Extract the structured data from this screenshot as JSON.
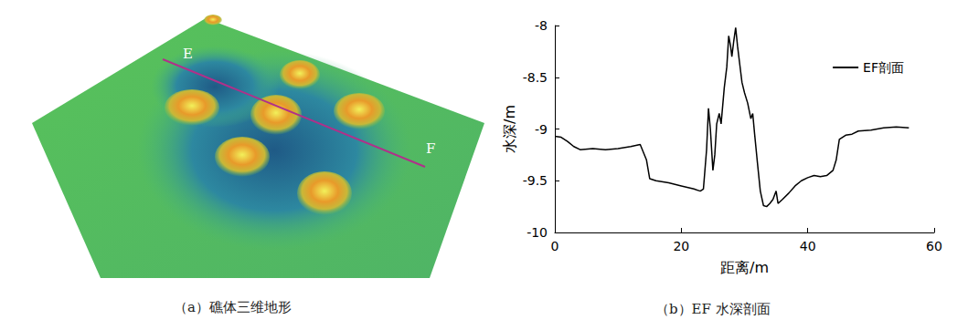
{
  "panel_a": {
    "caption": "（a）礁体三维地形",
    "labels": {
      "start": "E",
      "end": "F"
    }
  },
  "chart_data": {
    "type": "line",
    "caption": "（b）EF 水深剖面",
    "xlabel": "距离/m",
    "ylabel": "水深/m",
    "x": [
      0,
      1,
      2,
      3,
      4,
      6,
      8,
      10,
      12,
      13.5,
      14.5,
      15,
      16,
      18,
      20,
      22,
      23,
      23.5,
      24,
      24.3,
      24.6,
      25,
      25.3,
      25.6,
      26,
      26.3,
      26.8,
      27.2,
      27.5,
      27.8,
      28,
      28.3,
      28.6,
      28.9,
      29.2,
      29.6,
      30,
      30.5,
      31,
      31.3,
      31.6,
      32,
      32.5,
      33,
      33.5,
      34,
      34.5,
      35,
      35.3,
      36,
      37,
      38,
      39,
      40,
      41,
      42,
      43,
      44,
      44.5,
      45,
      46,
      47,
      48,
      50,
      52,
      54,
      56
    ],
    "series": [
      {
        "name": "EF剖面",
        "color": "#000000",
        "values": [
          -9.07,
          -9.08,
          -9.12,
          -9.17,
          -9.2,
          -9.19,
          -9.2,
          -9.19,
          -9.17,
          -9.15,
          -9.3,
          -9.48,
          -9.5,
          -9.52,
          -9.55,
          -9.58,
          -9.6,
          -9.58,
          -9.2,
          -8.8,
          -9.0,
          -9.4,
          -9.25,
          -8.95,
          -8.85,
          -8.95,
          -8.6,
          -8.4,
          -8.1,
          -8.2,
          -8.3,
          -8.15,
          -8.02,
          -8.2,
          -8.35,
          -8.55,
          -8.65,
          -8.75,
          -8.9,
          -8.85,
          -9.05,
          -9.3,
          -9.6,
          -9.74,
          -9.75,
          -9.72,
          -9.68,
          -9.6,
          -9.72,
          -9.68,
          -9.62,
          -9.55,
          -9.5,
          -9.47,
          -9.45,
          -9.46,
          -9.45,
          -9.4,
          -9.3,
          -9.1,
          -9.06,
          -9.05,
          -9.02,
          -9.01,
          -8.99,
          -8.98,
          -8.99
        ]
      }
    ],
    "xlim": [
      0,
      60
    ],
    "xticks": [
      0,
      20,
      40,
      60
    ],
    "ylim": [
      -10,
      -8
    ],
    "yticks": [
      -10,
      -9.5,
      -9,
      -8.5,
      -8
    ],
    "grid": false,
    "legend": "upper right"
  }
}
